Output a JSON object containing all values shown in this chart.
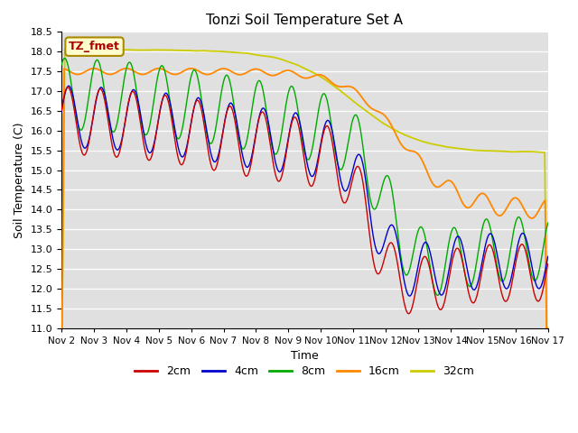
{
  "title": "Tonzi Soil Temperature Set A",
  "xlabel": "Time",
  "ylabel": "Soil Temperature (C)",
  "ylim": [
    11.0,
    18.5
  ],
  "x_tick_labels": [
    "Nov 2",
    "Nov 3",
    "Nov 4",
    "Nov 5",
    "Nov 6",
    "Nov 7",
    "Nov 8",
    "Nov 9",
    "Nov 10",
    "Nov 11",
    "Nov 12",
    "Nov 13",
    "Nov 14",
    "Nov 15",
    "Nov 16",
    "Nov 17"
  ],
  "series_colors": {
    "2cm": "#cc0000",
    "4cm": "#0000cc",
    "8cm": "#00aa00",
    "16cm": "#ff8800",
    "32cm": "#cccc00"
  },
  "legend_label": "TZ_fmet",
  "plot_bg_color": "#e0e0e0"
}
